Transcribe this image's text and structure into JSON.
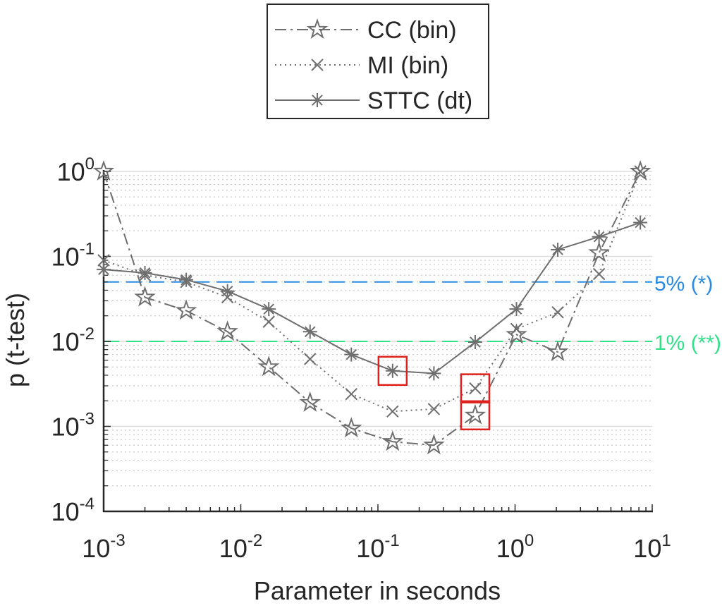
{
  "chart_data": {
    "type": "line",
    "xscale": "log",
    "yscale": "log",
    "xlim": [
      0.001,
      10
    ],
    "ylim": [
      0.0001,
      1
    ],
    "xlabel": "Parameter in seconds",
    "ylabel": "p (t-test)",
    "grid": "y-major-and-minor",
    "legend_position": "top-center",
    "x_ticks": [
      {
        "value": 0.001,
        "base": "10",
        "exp": "-3"
      },
      {
        "value": 0.01,
        "base": "10",
        "exp": "-2"
      },
      {
        "value": 0.1,
        "base": "10",
        "exp": "-1"
      },
      {
        "value": 1,
        "base": "10",
        "exp": "0"
      },
      {
        "value": 10,
        "base": "10",
        "exp": "1"
      }
    ],
    "y_ticks": [
      {
        "value": 1,
        "base": "10",
        "exp": "0"
      },
      {
        "value": 0.1,
        "base": "10",
        "exp": "-1"
      },
      {
        "value": 0.01,
        "base": "10",
        "exp": "-2"
      },
      {
        "value": 0.001,
        "base": "10",
        "exp": "-3"
      },
      {
        "value": 0.0001,
        "base": "10",
        "exp": "-4"
      }
    ],
    "x": [
      0.001,
      0.002,
      0.004,
      0.008,
      0.016,
      0.032,
      0.064,
      0.128,
      0.256,
      0.512,
      1.024,
      2.048,
      4.096,
      8.192
    ],
    "series": [
      {
        "name": "CC (bin)",
        "marker": "star",
        "line": "dashdot",
        "color": "#6e6e6e",
        "values": [
          1.0,
          0.033,
          0.023,
          0.013,
          0.005,
          0.0019,
          0.00095,
          0.00066,
          0.0006,
          0.00135,
          0.012,
          0.0075,
          0.11,
          1.0
        ]
      },
      {
        "name": "MI (bin)",
        "marker": "x",
        "line": "dotted",
        "color": "#6e6e6e",
        "values": [
          0.09,
          0.06,
          0.05,
          0.033,
          0.017,
          0.0062,
          0.0024,
          0.0015,
          0.0016,
          0.0028,
          0.014,
          0.022,
          0.062,
          1.0
        ]
      },
      {
        "name": "STTC (dt)",
        "marker": "asterisk",
        "line": "solid",
        "color": "#6e6e6e",
        "values": [
          0.07,
          0.064,
          0.053,
          0.039,
          0.024,
          0.013,
          0.007,
          0.0045,
          0.0042,
          0.0098,
          0.024,
          0.12,
          0.17,
          0.25
        ]
      }
    ],
    "reference_lines": [
      {
        "y": 0.05,
        "label": "5% (*)",
        "color": "#2b8be0"
      },
      {
        "y": 0.01,
        "label": "1% (**)",
        "color": "#33e08a"
      }
    ],
    "highlights": [
      {
        "series": "STTC (dt)",
        "x": 0.128,
        "y": 0.0045,
        "color": "#e0201c"
      },
      {
        "series": "MI (bin)",
        "x": 0.512,
        "y": 0.0028,
        "color": "#e0201c"
      },
      {
        "series": "CC (bin)",
        "x": 0.512,
        "y": 0.00135,
        "color": "#e0201c"
      }
    ]
  }
}
